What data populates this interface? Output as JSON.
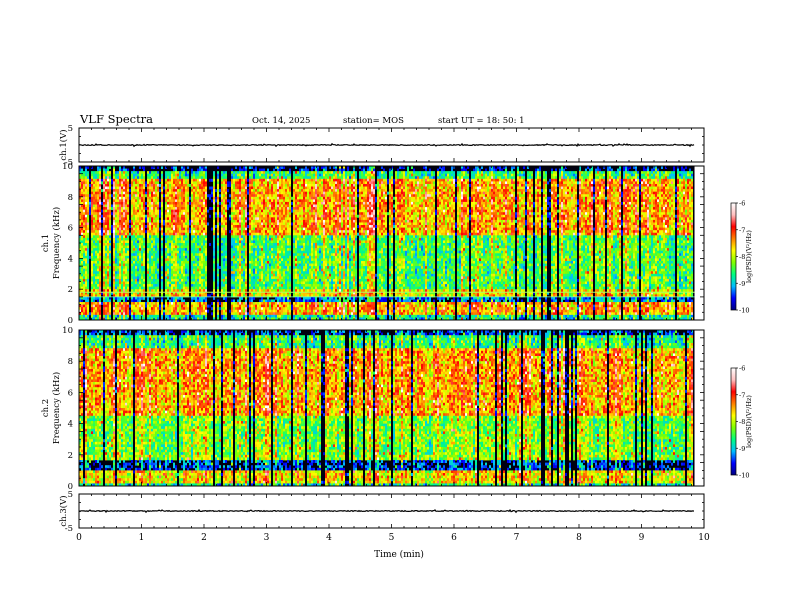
{
  "header": {
    "title": "VLF Spectra",
    "date": "Oct. 14, 2025",
    "station": "station= MOS",
    "start": "start  UT  =   18: 50: 1"
  },
  "chart_data": [
    {
      "type": "line",
      "name": "ch1-waveform",
      "ylabel": "ch.1(V)",
      "ylim": [
        -5,
        5
      ],
      "yticks": [
        "5",
        "-5"
      ],
      "baseline": 0
    },
    {
      "type": "heatmap",
      "name": "ch1-spectrogram",
      "ylabel": "ch.1\nFrequency (kHz)",
      "ylim": [
        0,
        10
      ],
      "yticks": [
        "0",
        "2",
        "4",
        "6",
        "8",
        "10"
      ]
    },
    {
      "type": "heatmap",
      "name": "ch2-spectrogram",
      "ylabel": "ch.2\nFrequency (kHz)",
      "ylim": [
        0,
        10
      ],
      "yticks": [
        "0",
        "2",
        "4",
        "6",
        "8",
        "10"
      ]
    },
    {
      "type": "line",
      "name": "ch3-waveform",
      "ylabel": "ch.3(V)",
      "ylim": [
        -5,
        5
      ],
      "yticks": [
        "5",
        "-5"
      ],
      "baseline": 0
    }
  ],
  "x_axis": {
    "label": "Time (min)",
    "xlim": [
      0,
      10
    ],
    "ticks": [
      "0",
      "1",
      "2",
      "3",
      "4",
      "5",
      "6",
      "7",
      "8",
      "9",
      "10"
    ],
    "data_end": 9.85
  },
  "colorbar": {
    "label": "log(PSD)(V²/Hz)",
    "range": [
      -10,
      -6
    ],
    "ticks": [
      "-6",
      "-7",
      "-8",
      "-9",
      "-10"
    ]
  },
  "colormap": [
    "#000080",
    "#0000ff",
    "#00bfff",
    "#00ff80",
    "#80ff00",
    "#ffff00",
    "#ff8000",
    "#ff0000",
    "#ffc0c0",
    "#ffffff"
  ]
}
